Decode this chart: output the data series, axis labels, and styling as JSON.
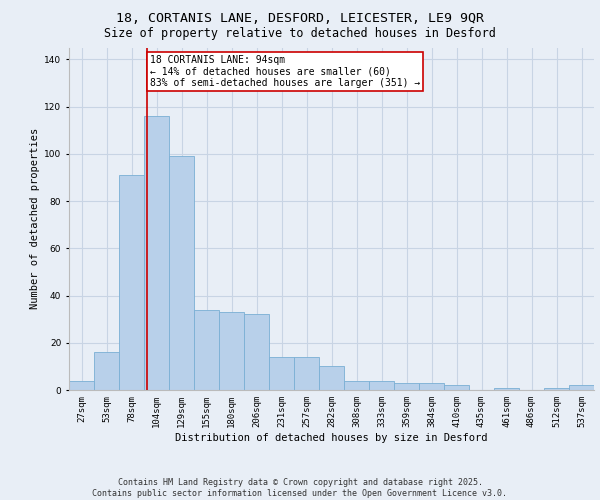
{
  "title_line1": "18, CORTANIS LANE, DESFORD, LEICESTER, LE9 9QR",
  "title_line2": "Size of property relative to detached houses in Desford",
  "xlabel": "Distribution of detached houses by size in Desford",
  "ylabel": "Number of detached properties",
  "categories": [
    "27sqm",
    "53sqm",
    "78sqm",
    "104sqm",
    "129sqm",
    "155sqm",
    "180sqm",
    "206sqm",
    "231sqm",
    "257sqm",
    "282sqm",
    "308sqm",
    "333sqm",
    "359sqm",
    "384sqm",
    "410sqm",
    "435sqm",
    "461sqm",
    "486sqm",
    "512sqm",
    "537sqm"
  ],
  "values": [
    4,
    16,
    91,
    116,
    99,
    34,
    33,
    32,
    14,
    14,
    10,
    4,
    4,
    3,
    3,
    2,
    0,
    1,
    0,
    1,
    2
  ],
  "bar_color": "#b8d0ea",
  "bar_edge_color": "#7aafd4",
  "grid_color": "#c8d4e4",
  "background_color": "#e8eef6",
  "plot_bg_color": "#e8eef6",
  "vline_x_index": 2.62,
  "vline_color": "#cc0000",
  "annotation_text": "18 CORTANIS LANE: 94sqm\n← 14% of detached houses are smaller (60)\n83% of semi-detached houses are larger (351) →",
  "annotation_box_color": "#ffffff",
  "annotation_box_edge_color": "#cc0000",
  "ylim": [
    0,
    145
  ],
  "yticks": [
    0,
    20,
    40,
    60,
    80,
    100,
    120,
    140
  ],
  "footer_line1": "Contains HM Land Registry data © Crown copyright and database right 2025.",
  "footer_line2": "Contains public sector information licensed under the Open Government Licence v3.0.",
  "title_fontsize": 9.5,
  "subtitle_fontsize": 8.5,
  "axis_label_fontsize": 7.5,
  "tick_fontsize": 6.5,
  "annotation_fontsize": 7,
  "footer_fontsize": 6
}
